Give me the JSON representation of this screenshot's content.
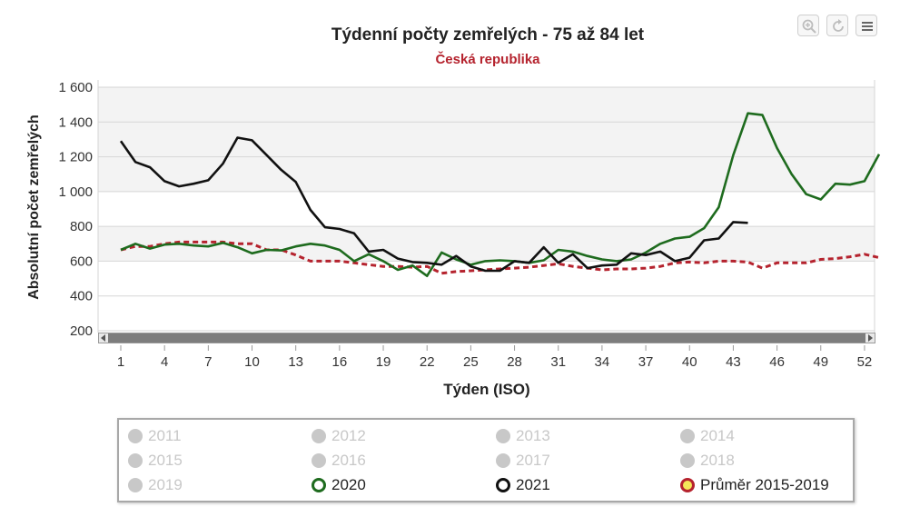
{
  "chart_data": {
    "type": "line",
    "title": "Týdenní počty zemřelých - 75 až 84 let",
    "subtitle": "Česká republika",
    "xlabel": "Týden (ISO)",
    "ylabel": "Absolutní počet zemřelých",
    "x_ticks": [
      1,
      4,
      7,
      10,
      13,
      16,
      19,
      22,
      25,
      28,
      31,
      34,
      37,
      40,
      43,
      46,
      49,
      52
    ],
    "y_ticks": [
      "200",
      "400",
      "600",
      "800",
      "1 000",
      "1 200",
      "1 400",
      "1 600"
    ],
    "y_tick_values": [
      200,
      400,
      600,
      800,
      1000,
      1200,
      1400,
      1600
    ],
    "xlim": [
      1,
      53
    ],
    "ylim": [
      200,
      1600
    ],
    "grid": true,
    "series": [
      {
        "name": "2020",
        "color": "#1e6b1e",
        "dashed": false,
        "x": [
          1,
          2,
          3,
          4,
          5,
          6,
          7,
          8,
          9,
          10,
          11,
          12,
          13,
          14,
          15,
          16,
          17,
          18,
          19,
          20,
          21,
          22,
          23,
          24,
          25,
          26,
          27,
          28,
          29,
          30,
          31,
          32,
          33,
          34,
          35,
          36,
          37,
          38,
          39,
          40,
          41,
          42,
          43,
          44,
          45,
          46,
          47,
          48,
          49,
          50,
          51,
          52,
          53
        ],
        "values": [
          665,
          700,
          672,
          695,
          700,
          690,
          685,
          705,
          680,
          645,
          665,
          662,
          685,
          700,
          690,
          665,
          600,
          640,
          600,
          550,
          575,
          515,
          650,
          610,
          580,
          600,
          605,
          600,
          590,
          605,
          665,
          655,
          630,
          610,
          600,
          610,
          650,
          700,
          730,
          740,
          790,
          910,
          1210,
          1450,
          1440,
          1250,
          1100,
          985,
          955,
          1045,
          1040,
          1060,
          1215
        ]
      },
      {
        "name": "2021",
        "color": "#111111",
        "dashed": false,
        "x": [
          1,
          2,
          3,
          4,
          5,
          6,
          7,
          8,
          9,
          10,
          11,
          12,
          13,
          14,
          15,
          16,
          17,
          18,
          19,
          20,
          21,
          22,
          23,
          24,
          25,
          26,
          27,
          28,
          29,
          30,
          31,
          32,
          33,
          34,
          35,
          36,
          37,
          38,
          39,
          40,
          41,
          42,
          43,
          44
        ],
        "values": [
          1290,
          1170,
          1140,
          1060,
          1030,
          1045,
          1065,
          1160,
          1310,
          1295,
          1210,
          1125,
          1055,
          895,
          795,
          785,
          760,
          655,
          665,
          615,
          595,
          590,
          580,
          630,
          570,
          545,
          545,
          600,
          590,
          680,
          590,
          640,
          560,
          575,
          580,
          645,
          635,
          655,
          600,
          620,
          720,
          730,
          825,
          820
        ]
      },
      {
        "name": "Průměr 2015-2019",
        "color": "#b5232e",
        "dashed": true,
        "x": [
          1,
          2,
          3,
          4,
          5,
          6,
          7,
          8,
          9,
          10,
          11,
          12,
          13,
          14,
          15,
          16,
          17,
          18,
          19,
          20,
          21,
          22,
          23,
          24,
          25,
          26,
          27,
          28,
          29,
          30,
          31,
          32,
          33,
          34,
          35,
          36,
          37,
          38,
          39,
          40,
          41,
          42,
          43,
          44,
          45,
          46,
          47,
          48,
          49,
          50,
          51,
          52,
          53
        ],
        "values": [
          665,
          685,
          685,
          700,
          710,
          710,
          710,
          710,
          700,
          700,
          665,
          665,
          635,
          600,
          600,
          600,
          590,
          580,
          570,
          570,
          565,
          570,
          530,
          540,
          545,
          550,
          555,
          560,
          565,
          575,
          585,
          570,
          560,
          550,
          555,
          555,
          560,
          570,
          590,
          595,
          590,
          600,
          600,
          595,
          560,
          590,
          590,
          590,
          610,
          615,
          625,
          640,
          620
        ]
      }
    ],
    "legend": {
      "placement": "bottom",
      "items": [
        {
          "label": "2011",
          "state": "hidden"
        },
        {
          "label": "2012",
          "state": "hidden"
        },
        {
          "label": "2013",
          "state": "hidden"
        },
        {
          "label": "2014",
          "state": "hidden"
        },
        {
          "label": "2015",
          "state": "hidden"
        },
        {
          "label": "2016",
          "state": "hidden"
        },
        {
          "label": "2017",
          "state": "hidden"
        },
        {
          "label": "2018",
          "state": "hidden"
        },
        {
          "label": "2019",
          "state": "hidden"
        },
        {
          "label": "2020",
          "state": "visible",
          "ring": "#1e6b1e",
          "fill": "#ffffff"
        },
        {
          "label": "2021",
          "state": "visible",
          "ring": "#111111",
          "fill": "#ffffff"
        },
        {
          "label": "Průměr 2015-2019",
          "state": "visible",
          "ring": "#b5232e",
          "fill": "#f5e85a"
        }
      ]
    }
  },
  "toolbar": {
    "icons": [
      "zoom-icon",
      "reset-icon",
      "menu-icon"
    ]
  },
  "colors": {
    "hidden_legend": "#c8c8c8",
    "band": "#f3f3f3",
    "grid": "#d6d6d6"
  }
}
